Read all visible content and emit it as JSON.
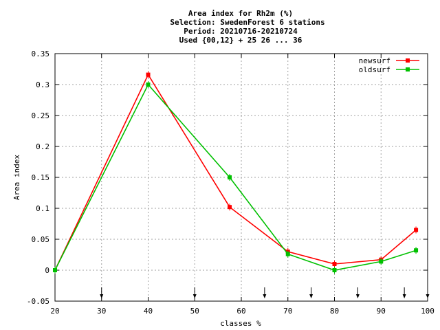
{
  "chart_data": {
    "type": "line",
    "title_lines": [
      "Area index  for Rh2m (%)",
      "Selection: SwedenForest      6 stations",
      "Period: 20210716-20210724",
      "Used {00,12} + 25 26 ... 36"
    ],
    "xlabel": "classes %",
    "ylabel": "Area index",
    "xlim": [
      20,
      100
    ],
    "ylim": [
      -0.05,
      0.35
    ],
    "xticks": [
      "20",
      "30",
      "40",
      "50",
      "60",
      "70",
      "80",
      "90",
      "100"
    ],
    "yticks": [
      "-0.05",
      "0",
      "0.05",
      "0.1",
      "0.15",
      "0.2",
      "0.25",
      "0.3",
      "0.35"
    ],
    "grid": true,
    "legend_position": "top-right",
    "arrow_markers_x": [
      30,
      50,
      65,
      75,
      85,
      95,
      100
    ],
    "series": [
      {
        "name": "newsurf",
        "color": "#ff0000",
        "x": [
          20,
          40,
          57.5,
          70,
          80,
          90,
          97.5
        ],
        "y": [
          0.0,
          0.316,
          0.102,
          0.03,
          0.01,
          0.017,
          0.065
        ]
      },
      {
        "name": "oldsurf",
        "color": "#00c000",
        "x": [
          20,
          40,
          57.5,
          70,
          80,
          90,
          97.5
        ],
        "y": [
          0.0,
          0.3,
          0.15,
          0.026,
          0.0,
          0.014,
          0.032
        ]
      }
    ]
  }
}
